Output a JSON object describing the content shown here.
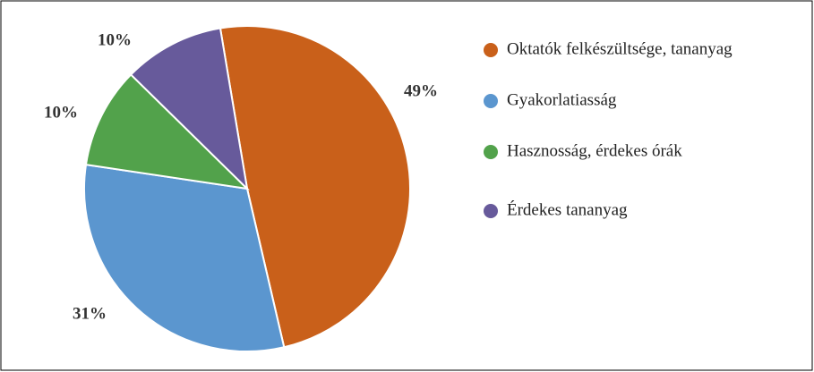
{
  "chart_data": {
    "type": "pie",
    "categories": [
      "Oktatók felkészültsége, tananyag",
      "Gyakorlatiasság",
      "Hasznosság, érdekes órák",
      "Érdekes tananyag"
    ],
    "values": [
      49,
      31,
      10,
      10
    ],
    "value_labels": [
      "49%",
      "31%",
      "10%",
      "10%"
    ],
    "colors": [
      "#c9601a",
      "#5b96cf",
      "#52a24b",
      "#675a9b"
    ],
    "legend": "right"
  }
}
